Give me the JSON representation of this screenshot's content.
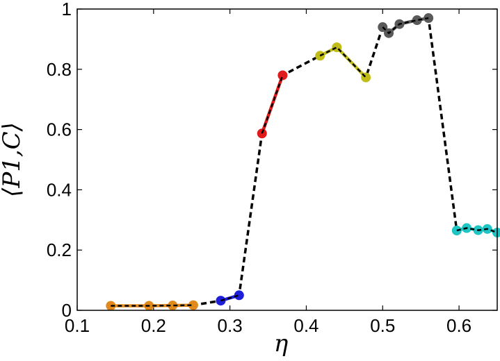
{
  "chart_data": {
    "type": "line",
    "title": "",
    "xlabel": "η",
    "ylabel": "⟨P1,C⟩",
    "xlim": [
      0.1,
      0.65
    ],
    "ylim": [
      0,
      1
    ],
    "x_ticks": [
      "0.1",
      "0.2",
      "0.3",
      "0.4",
      "0.5",
      "0.6"
    ],
    "y_ticks": [
      "0",
      "0.2",
      "0.4",
      "0.6",
      "0.8",
      "1"
    ],
    "grid": false,
    "legend": "none",
    "connector": {
      "style": "dashed",
      "color": "#000000",
      "x": [
        0.144,
        0.194,
        0.225,
        0.252,
        0.288,
        0.312,
        0.342,
        0.369,
        0.418,
        0.44,
        0.478,
        0.5,
        0.508,
        0.522,
        0.545,
        0.56,
        0.597,
        0.61,
        0.625,
        0.637,
        0.65
      ],
      "y": [
        0.015,
        0.015,
        0.016,
        0.017,
        0.032,
        0.05,
        0.587,
        0.78,
        0.845,
        0.873,
        0.773,
        0.94,
        0.92,
        0.95,
        0.963,
        0.97,
        0.265,
        0.273,
        0.266,
        0.27,
        0.258
      ]
    },
    "series": [
      {
        "color": "#e08a1e",
        "x": [
          0.144,
          0.194,
          0.225,
          0.252
        ],
        "y": [
          0.015,
          0.015,
          0.016,
          0.017
        ]
      },
      {
        "color": "#1f1fd9",
        "x": [
          0.288,
          0.312
        ],
        "y": [
          0.032,
          0.05
        ]
      },
      {
        "color": "#e01b1b",
        "x": [
          0.342,
          0.369
        ],
        "y": [
          0.587,
          0.78
        ]
      },
      {
        "color": "#c0bd1a",
        "x": [
          0.418,
          0.44,
          0.478
        ],
        "y": [
          0.845,
          0.873,
          0.773
        ]
      },
      {
        "color": "#5a5a5a",
        "x": [
          0.5,
          0.508,
          0.522,
          0.545,
          0.56
        ],
        "y": [
          0.94,
          0.92,
          0.95,
          0.963,
          0.97
        ]
      },
      {
        "color": "#1fc4c4",
        "x": [
          0.597,
          0.61,
          0.625,
          0.637,
          0.65
        ],
        "y": [
          0.265,
          0.273,
          0.266,
          0.27,
          0.258
        ]
      }
    ]
  }
}
